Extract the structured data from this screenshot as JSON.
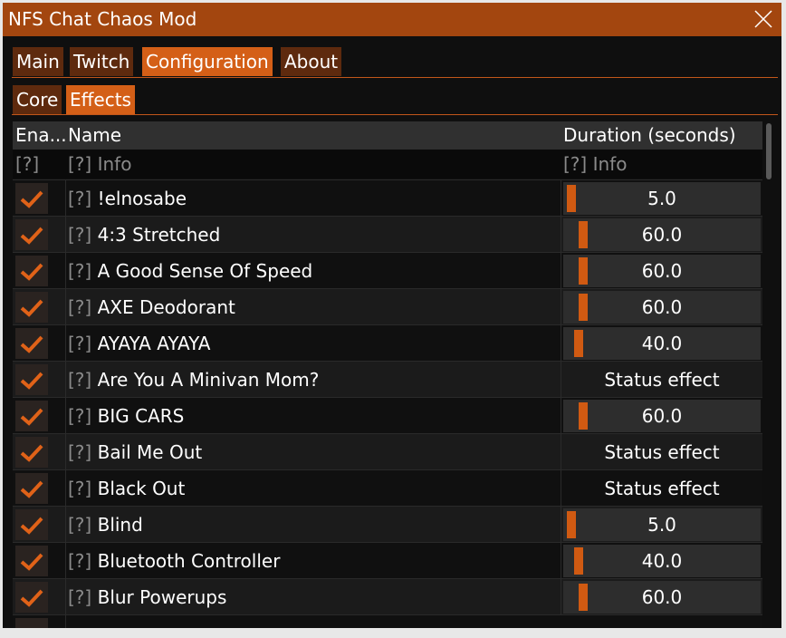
{
  "window": {
    "title": "NFS Chat Chaos Mod"
  },
  "tabs": [
    "Main",
    "Twitch",
    "Configuration",
    "About"
  ],
  "active_tab": 2,
  "subtabs": [
    "Core",
    "Effects"
  ],
  "active_subtab": 1,
  "table": {
    "columns": [
      "Ena...",
      "Name",
      "Duration (seconds)"
    ],
    "info_row": [
      "[?]",
      "[?] Info",
      "[?] Info"
    ],
    "rows": [
      {
        "enabled": true,
        "help": "[?]",
        "name": "!elnosabe",
        "duration": "5.0"
      },
      {
        "enabled": true,
        "help": "[?]",
        "name": "4:3 Stretched",
        "duration": "60.0"
      },
      {
        "enabled": true,
        "help": "[?]",
        "name": "A Good Sense Of Speed",
        "duration": "60.0"
      },
      {
        "enabled": true,
        "help": "[?]",
        "name": "AXE Deodorant",
        "duration": "60.0"
      },
      {
        "enabled": true,
        "help": "[?]",
        "name": "AYAYA AYAYA",
        "duration": "40.0"
      },
      {
        "enabled": true,
        "help": "[?]",
        "name": "Are You A Minivan Mom?",
        "duration": "Status effect"
      },
      {
        "enabled": true,
        "help": "[?]",
        "name": "BIG CARS",
        "duration": "60.0"
      },
      {
        "enabled": true,
        "help": "[?]",
        "name": "Bail Me Out",
        "duration": "Status effect"
      },
      {
        "enabled": true,
        "help": "[?]",
        "name": "Black Out",
        "duration": "Status effect"
      },
      {
        "enabled": true,
        "help": "[?]",
        "name": "Blind",
        "duration": "5.0"
      },
      {
        "enabled": true,
        "help": "[?]",
        "name": "Bluetooth Controller",
        "duration": "40.0"
      },
      {
        "enabled": true,
        "help": "[?]",
        "name": "Blur Powerups",
        "duration": "60.0"
      }
    ]
  }
}
